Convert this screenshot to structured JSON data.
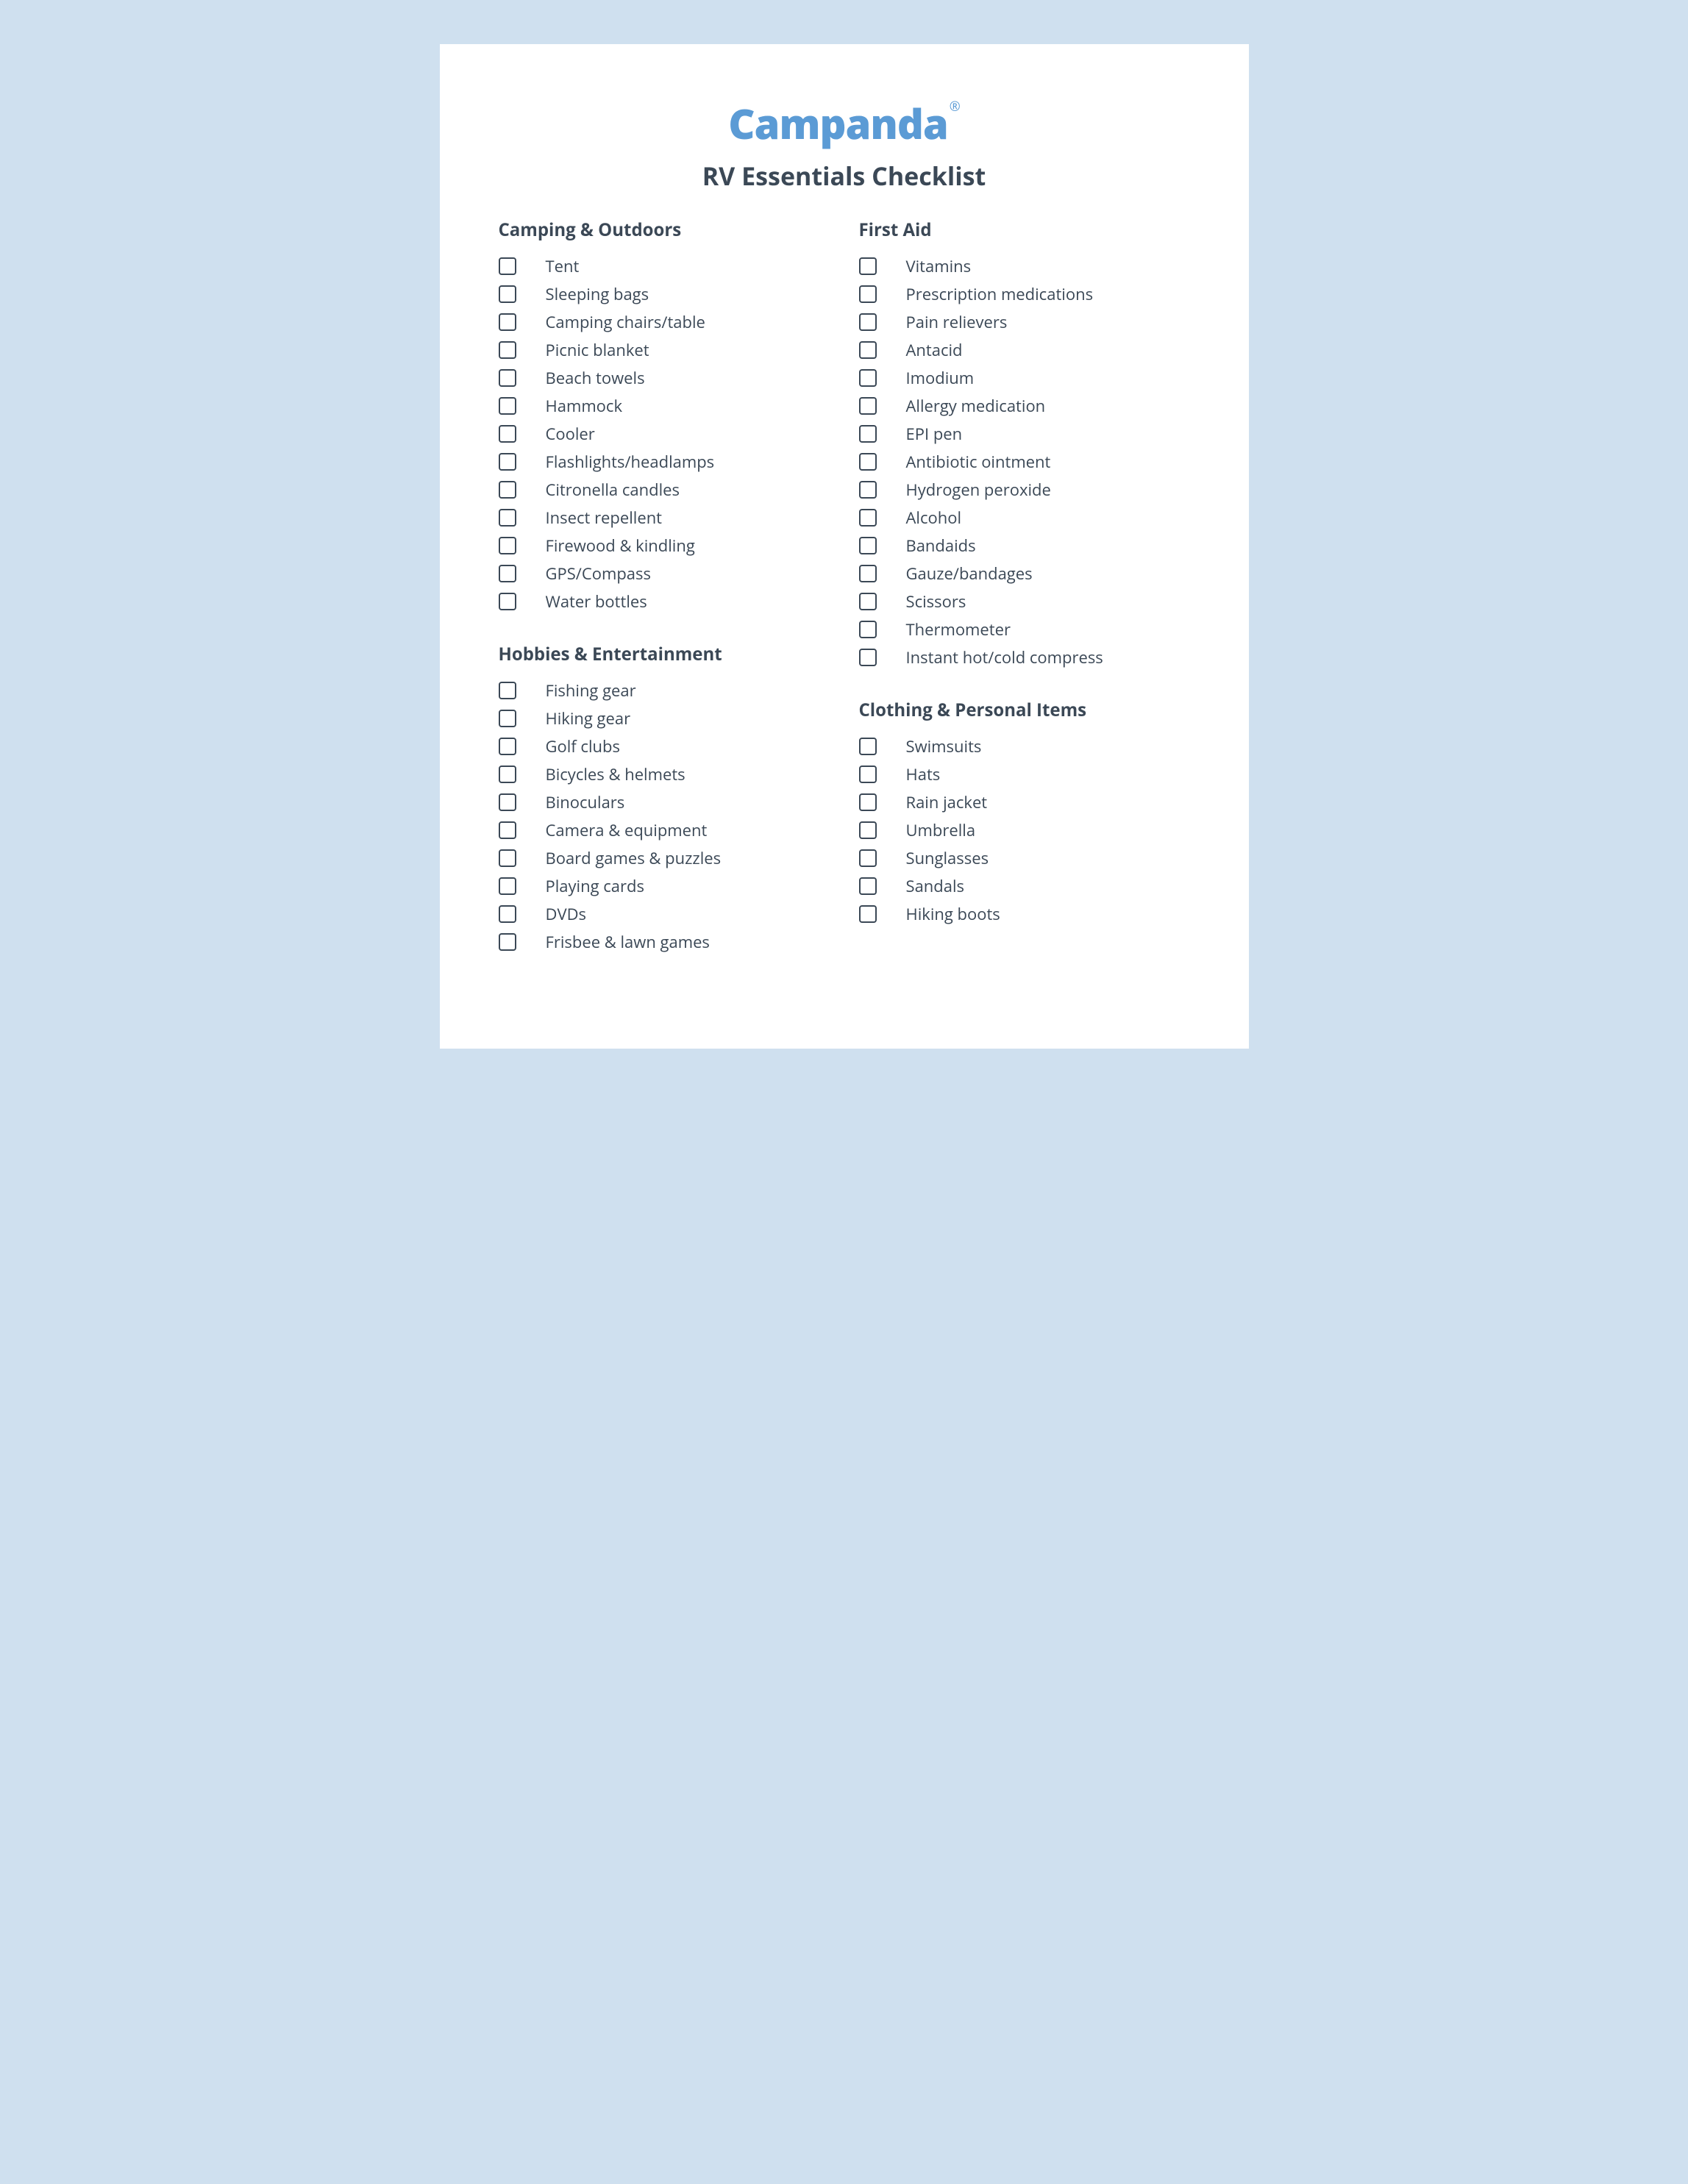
{
  "brand": "Campanda",
  "brand_symbol": "®",
  "title": "RV Essentials Checklist",
  "colors": {
    "page_bg": "#cfe0ef",
    "card_bg": "#ffffff",
    "brand": "#5b9bd5",
    "text": "#3b4856",
    "checkbox_border": "#3b4856"
  },
  "left": [
    {
      "title": "Camping & Outdoors",
      "items": [
        "Tent",
        "Sleeping bags",
        "Camping chairs/table",
        "Picnic blanket",
        "Beach towels",
        "Hammock",
        "Cooler",
        "Flashlights/headlamps",
        "Citronella candles",
        "Insect repellent",
        "Firewood & kindling",
        "GPS/Compass",
        "Water bottles"
      ]
    },
    {
      "title": "Hobbies & Entertainment",
      "items": [
        "Fishing gear",
        "Hiking gear",
        "Golf clubs",
        "Bicycles & helmets",
        "Binoculars",
        "Camera & equipment",
        "Board games & puzzles",
        "Playing cards",
        "DVDs",
        "Frisbee & lawn games"
      ]
    }
  ],
  "right": [
    {
      "title": "First Aid",
      "items": [
        "Vitamins",
        "Prescription medications",
        "Pain relievers",
        "Antacid",
        "Imodium",
        "Allergy medication",
        "EPI pen",
        "Antibiotic ointment",
        "Hydrogen peroxide",
        "Alcohol",
        "Bandaids",
        "Gauze/bandages",
        "Scissors",
        "Thermometer",
        "Instant hot/cold compress"
      ]
    },
    {
      "title": "Clothing & Personal Items",
      "items": [
        "Swimsuits",
        "Hats",
        "Rain jacket",
        "Umbrella",
        "Sunglasses",
        "Sandals",
        "Hiking boots"
      ]
    }
  ]
}
